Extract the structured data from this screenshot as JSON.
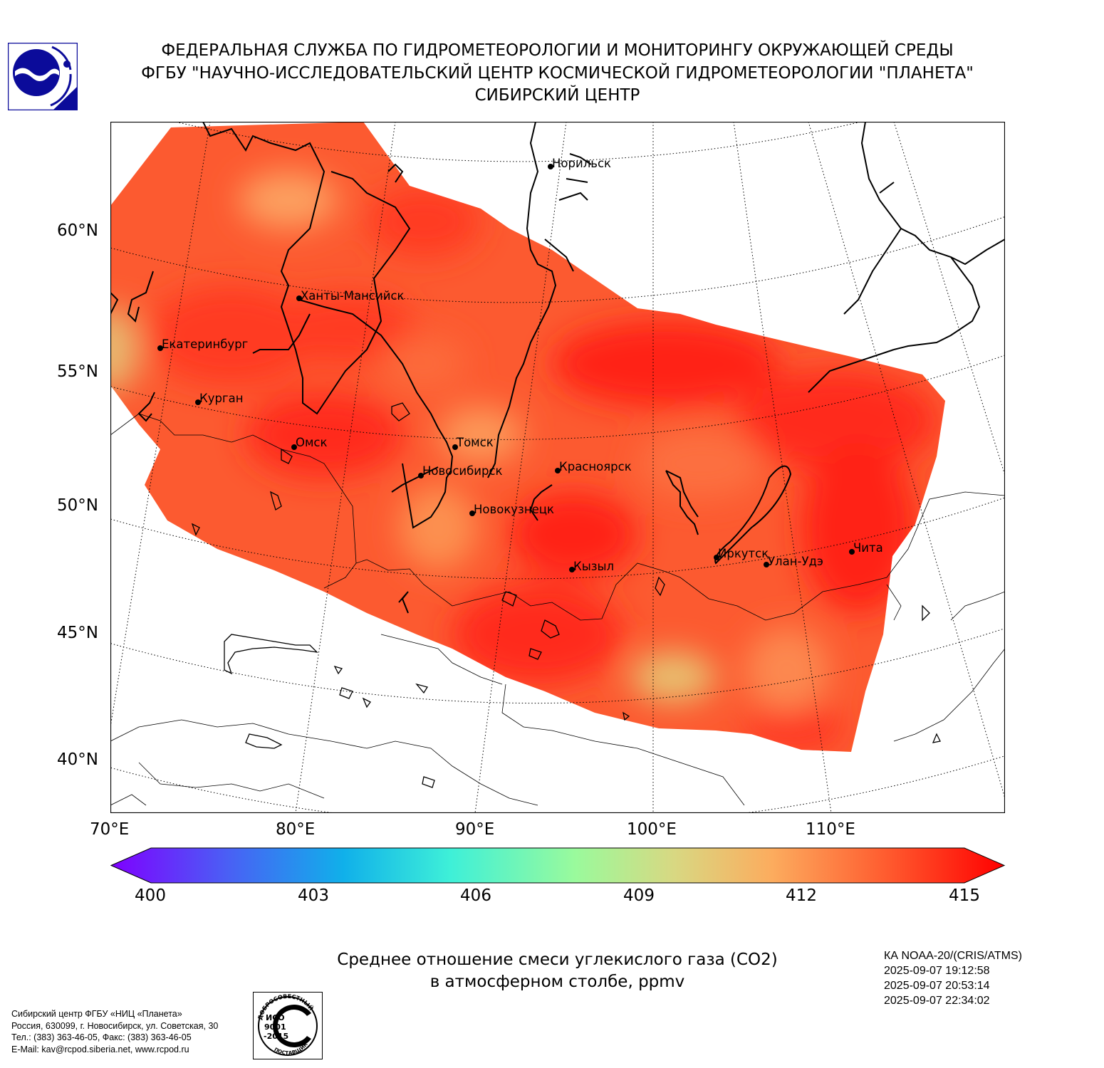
{
  "header": {
    "line1": "ФЕДЕРАЛЬНАЯ СЛУЖБА ПО ГИДРОМЕТЕОРОЛОГИИ И МОНИТОРИНГУ ОКРУЖАЮЩЕЙ СРЕДЫ",
    "line2": "ФГБУ \"НАУЧНО-ИССЛЕДОВАТЕЛЬСКИЙ ЦЕНТР КОСМИЧЕСКОЙ ГИДРОМЕТЕОРОЛОГИИ \"ПЛАНЕТА\"",
    "line3": "СИБИРСКИЙ ЦЕНТР"
  },
  "logo": {
    "icon": "planeta-logo-icon",
    "color": "#0b0b9a"
  },
  "map": {
    "lat_labels": [
      "60°N",
      "55°N",
      "50°N",
      "45°N",
      "40°N"
    ],
    "lon_labels": [
      "70°E",
      "80°E",
      "90°E",
      "100°E",
      "110°E"
    ],
    "cities": [
      {
        "name": "Норильск"
      },
      {
        "name": "Ханты-Мансийск"
      },
      {
        "name": "Екатеринбург"
      },
      {
        "name": "Курган"
      },
      {
        "name": "Омск"
      },
      {
        "name": "Томск"
      },
      {
        "name": "Новосибирск"
      },
      {
        "name": "Красноярск"
      },
      {
        "name": "Новокузнецк"
      },
      {
        "name": "Кызыл"
      },
      {
        "name": "Иркутск"
      },
      {
        "name": "Улан-Удэ"
      },
      {
        "name": "Чита"
      }
    ]
  },
  "colorbar": {
    "ticks": [
      "400",
      "403",
      "406",
      "409",
      "412",
      "415"
    ],
    "min": 400,
    "max": 415,
    "colors": [
      "#7f00ff",
      "#4a5ff5",
      "#10b0ea",
      "#3ef0d8",
      "#9afa9c",
      "#d8d882",
      "#fcac5e",
      "#ff5a2e",
      "#ff0000"
    ]
  },
  "title": {
    "line1": "Среднее отношение смеси углекислого газа (CO2)",
    "line2": "в атмосферном столбе, ppmv"
  },
  "satellite": {
    "name": "КА NOAA-20/(CRIS/ATMS)",
    "times": [
      "2025-09-07 19:12:58",
      "2025-09-07 20:53:14",
      "2025-09-07 22:34:02"
    ]
  },
  "org": {
    "line1": "Сибирский центр ФГБУ «НИЦ «Планета»",
    "line2": "Россия, 630099, г. Новосибирск, ул. Советская, 30",
    "line3": "Тел.: (383) 363-46-05, Факс: (383) 363-46-05",
    "line4": "E-Mail: kav@rcpod.siberia.net, www.rcpod.ru"
  },
  "iso": {
    "top_text": "ДОБРОСОВЕСТНЫЙ",
    "bottom_text": "ПОСТАВЩИК",
    "line1": "ИСО",
    "line2": "9001",
    "line3": "-2015"
  }
}
